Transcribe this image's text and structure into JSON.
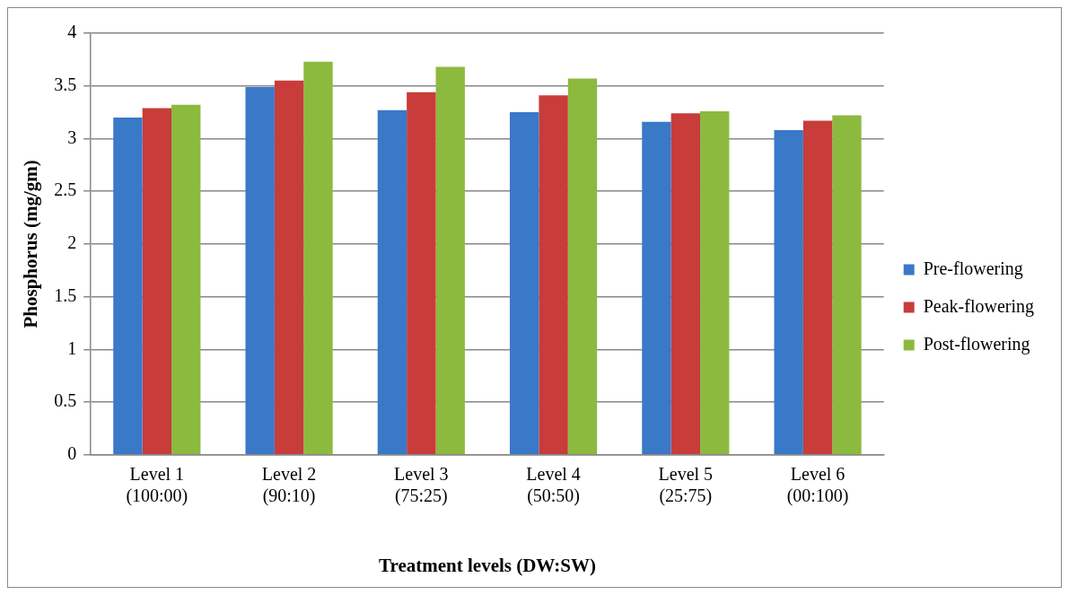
{
  "chart_data": {
    "type": "bar",
    "xlabel": "Treatment levels (DW:SW)",
    "ylabel": "Phosphorus (mg/gm)",
    "categories": [
      "Level 1\n(100:00)",
      "Level 2\n(90:10)",
      "Level 3\n(75:25)",
      "Level 4\n(50:50)",
      "Level 5\n(25:75)",
      "Level 6\n(00:100)"
    ],
    "series": [
      {
        "name": "Pre-flowering",
        "color": "#3a78c8",
        "values": [
          3.2,
          3.49,
          3.27,
          3.25,
          3.16,
          3.08
        ]
      },
      {
        "name": "Peak-flowering",
        "color": "#c83c3a",
        "values": [
          3.29,
          3.55,
          3.44,
          3.41,
          3.24,
          3.17
        ]
      },
      {
        "name": "Post-flowering",
        "color": "#8cba3e",
        "values": [
          3.32,
          3.73,
          3.68,
          3.57,
          3.26,
          3.22
        ]
      }
    ],
    "ylim": [
      0,
      4
    ],
    "yticks": [
      0,
      0.5,
      1,
      1.5,
      2,
      2.5,
      3,
      3.5,
      4
    ],
    "grid": "y",
    "legend": "right"
  }
}
